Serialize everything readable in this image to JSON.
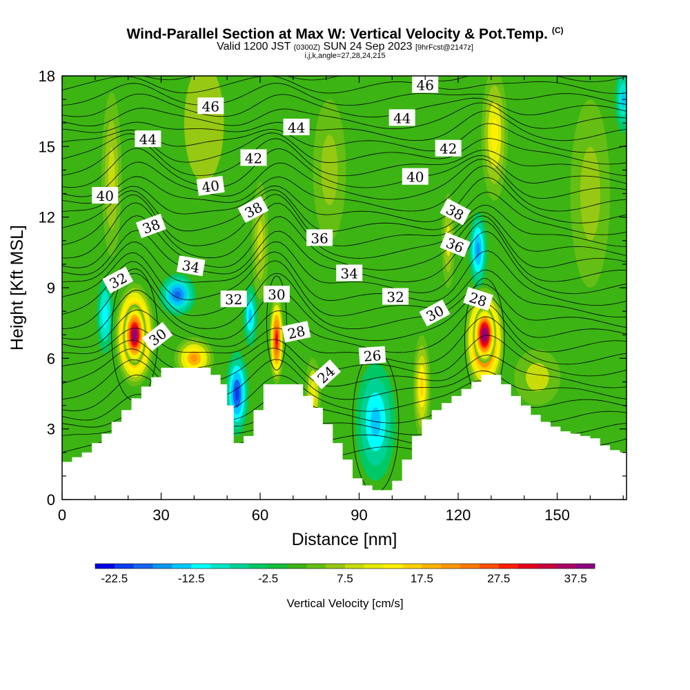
{
  "header": {
    "title": "Wind-Parallel Section at Max W: Vertical Velocity & Pot.Temp.",
    "copyright": "(C)",
    "valid_prefix": "Valid 1200 JST",
    "valid_utc": "(0300Z)",
    "valid_date": "SUN 24 Sep 2023",
    "forecast": "[9hrFcst@2147z]",
    "params": "i,j,k,angle=27,28,24,215"
  },
  "chart_data": {
    "type": "heatmap",
    "xlabel": "Distance [nm]",
    "ylabel": "Height [Kft MSL]",
    "xlim": [
      0,
      171
    ],
    "ylim": [
      0,
      18
    ],
    "x_ticks": [
      0,
      30,
      60,
      90,
      120,
      150
    ],
    "y_ticks": [
      0,
      3,
      6,
      9,
      12,
      15,
      18
    ],
    "colorbar": {
      "label": "Vertical Velocity [cm/s]",
      "tick_labels": [
        "-22.5",
        "-12.5",
        "-2.5",
        "7.5",
        "17.5",
        "27.5",
        "37.5"
      ],
      "min": -25,
      "max": 40,
      "step": 2.5,
      "colors": [
        "#0000e6",
        "#0a3cf0",
        "#1464f0",
        "#0a96f0",
        "#00c8ff",
        "#00ffff",
        "#00e6c8",
        "#00d296",
        "#00c864",
        "#14be3c",
        "#3cb414",
        "#64be14",
        "#96c814",
        "#c8dc0a",
        "#e6ec00",
        "#fff000",
        "#ffd200",
        "#ffb400",
        "#ff9600",
        "#ff7800",
        "#ff5000",
        "#ff1e00",
        "#e6001e",
        "#c8003c",
        "#aa0064",
        "#8c0082"
      ]
    },
    "terrain_profile": {
      "x": [
        0,
        3,
        6,
        9,
        12,
        15,
        18,
        21,
        24,
        27,
        30,
        33,
        36,
        39,
        42,
        45,
        48,
        50,
        52,
        55,
        58,
        61,
        64,
        67,
        70,
        73,
        76,
        79,
        82,
        85,
        88,
        91,
        94,
        97,
        100,
        103,
        106,
        109,
        112,
        115,
        118,
        121,
        124,
        127,
        130,
        133,
        136,
        139,
        142,
        145,
        148,
        151,
        154,
        157,
        160,
        163,
        166,
        169,
        171
      ],
      "height_kft": [
        1.6,
        1.8,
        2.0,
        2.4,
        2.8,
        3.3,
        3.8,
        4.3,
        4.8,
        5.2,
        5.6,
        5.6,
        5.6,
        5.6,
        5.6,
        5.3,
        4.9,
        4.0,
        2.4,
        2.7,
        3.8,
        4.9,
        4.9,
        4.9,
        4.9,
        4.4,
        3.9,
        3.2,
        2.4,
        1.7,
        0.9,
        0.6,
        0.4,
        0.4,
        0.8,
        1.7,
        2.7,
        3.4,
        3.8,
        4.1,
        4.4,
        4.7,
        5.0,
        5.3,
        5.3,
        4.9,
        4.4,
        4.0,
        3.6,
        3.3,
        3.1,
        2.9,
        2.8,
        2.7,
        2.6,
        2.3,
        2.1,
        2.0,
        2.0
      ]
    },
    "vertical_velocity_cells": [
      {
        "x": 22,
        "y": 7.0,
        "rx": 6,
        "ry": 2.2,
        "w": 37
      },
      {
        "x": 22,
        "y": 7.0,
        "rx": 3.5,
        "ry": 1.3,
        "w": 42
      },
      {
        "x": 128,
        "y": 6.8,
        "rx": 6,
        "ry": 2.2,
        "w": 38
      },
      {
        "x": 128,
        "y": 7.0,
        "rx": 3.5,
        "ry": 1.2,
        "w": 45
      },
      {
        "x": 65,
        "y": 6.8,
        "rx": 2.2,
        "ry": 1.9,
        "w": 32
      },
      {
        "x": 40,
        "y": 6.0,
        "rx": 6,
        "ry": 0.9,
        "w": 22
      },
      {
        "x": 35,
        "y": 8.7,
        "rx": 5.5,
        "ry": 0.9,
        "w": -20
      },
      {
        "x": 53,
        "y": 4.5,
        "rx": 3.5,
        "ry": 1.8,
        "w": -22
      },
      {
        "x": 57,
        "y": 7.8,
        "rx": 2.2,
        "ry": 1.3,
        "w": -14
      },
      {
        "x": 95,
        "y": 3.3,
        "rx": 6,
        "ry": 2.5,
        "w": -15
      },
      {
        "x": 126,
        "y": 10.6,
        "rx": 2.8,
        "ry": 1.6,
        "w": -17
      },
      {
        "x": 13,
        "y": 7.8,
        "rx": 2.5,
        "ry": 1.6,
        "w": -12
      },
      {
        "x": 170,
        "y": 17.0,
        "rx": 2.5,
        "ry": 1.4,
        "w": -13
      },
      {
        "x": 131,
        "y": 15.5,
        "rx": 4,
        "ry": 2.8,
        "w": 14
      },
      {
        "x": 15,
        "y": 13.8,
        "rx": 3,
        "ry": 3.5,
        "w": 9
      },
      {
        "x": 109,
        "y": 4.8,
        "rx": 2.6,
        "ry": 2.2,
        "w": 16
      },
      {
        "x": 76,
        "y": 4.5,
        "rx": 2.4,
        "ry": 1.5,
        "w": 12
      },
      {
        "x": 144,
        "y": 5.2,
        "rx": 7,
        "ry": 1.2,
        "w": 8
      },
      {
        "x": 60,
        "y": 11.0,
        "rx": 2.5,
        "ry": 2.5,
        "w": 9
      },
      {
        "x": 117,
        "y": 11.0,
        "rx": 2,
        "ry": 2,
        "w": 10
      },
      {
        "x": 81,
        "y": 14.0,
        "rx": 5,
        "ry": 3,
        "w": 6
      },
      {
        "x": 160,
        "y": 13.0,
        "rx": 6,
        "ry": 4,
        "w": 6
      },
      {
        "x": 43,
        "y": 16.0,
        "rx": 6,
        "ry": 2.5,
        "w": 5
      }
    ],
    "theta_contour_labels": [
      {
        "text": "46",
        "x": 45,
        "y": 16.7,
        "rot": 0
      },
      {
        "text": "46",
        "x": 110,
        "y": 17.6,
        "rot": 0
      },
      {
        "text": "44",
        "x": 26,
        "y": 15.3,
        "rot": 0
      },
      {
        "text": "44",
        "x": 71,
        "y": 15.8,
        "rot": 0
      },
      {
        "text": "44",
        "x": 103,
        "y": 16.2,
        "rot": 0
      },
      {
        "text": "42",
        "x": 58,
        "y": 14.5,
        "rot": 0
      },
      {
        "text": "42",
        "x": 117,
        "y": 14.9,
        "rot": 0
      },
      {
        "text": "40",
        "x": 13,
        "y": 12.9,
        "rot": 0
      },
      {
        "text": "40",
        "x": 45,
        "y": 13.3,
        "rot": -8
      },
      {
        "text": "40",
        "x": 107,
        "y": 13.7,
        "rot": 0
      },
      {
        "text": "38",
        "x": 27,
        "y": 11.6,
        "rot": -20
      },
      {
        "text": "38",
        "x": 58,
        "y": 12.3,
        "rot": -28
      },
      {
        "text": "38",
        "x": 119,
        "y": 12.2,
        "rot": 28
      },
      {
        "text": "36",
        "x": 78,
        "y": 11.1,
        "rot": 0
      },
      {
        "text": "36",
        "x": 119,
        "y": 10.8,
        "rot": 22
      },
      {
        "text": "34",
        "x": 39,
        "y": 9.9,
        "rot": 10
      },
      {
        "text": "34",
        "x": 87,
        "y": 9.6,
        "rot": 0
      },
      {
        "text": "32",
        "x": 17,
        "y": 9.3,
        "rot": -28
      },
      {
        "text": "32",
        "x": 52,
        "y": 8.5,
        "rot": 0
      },
      {
        "text": "32",
        "x": 101,
        "y": 8.6,
        "rot": 0
      },
      {
        "text": "30",
        "x": 65,
        "y": 8.7,
        "rot": 0
      },
      {
        "text": "30",
        "x": 29,
        "y": 6.9,
        "rot": -38
      },
      {
        "text": "30",
        "x": 113,
        "y": 7.9,
        "rot": -28
      },
      {
        "text": "28",
        "x": 71,
        "y": 7.1,
        "rot": -12
      },
      {
        "text": "28",
        "x": 126,
        "y": 8.5,
        "rot": 18
      },
      {
        "text": "26",
        "x": 94,
        "y": 6.1,
        "rot": -4
      },
      {
        "text": "24",
        "x": 80,
        "y": 5.3,
        "rot": -42
      }
    ]
  }
}
